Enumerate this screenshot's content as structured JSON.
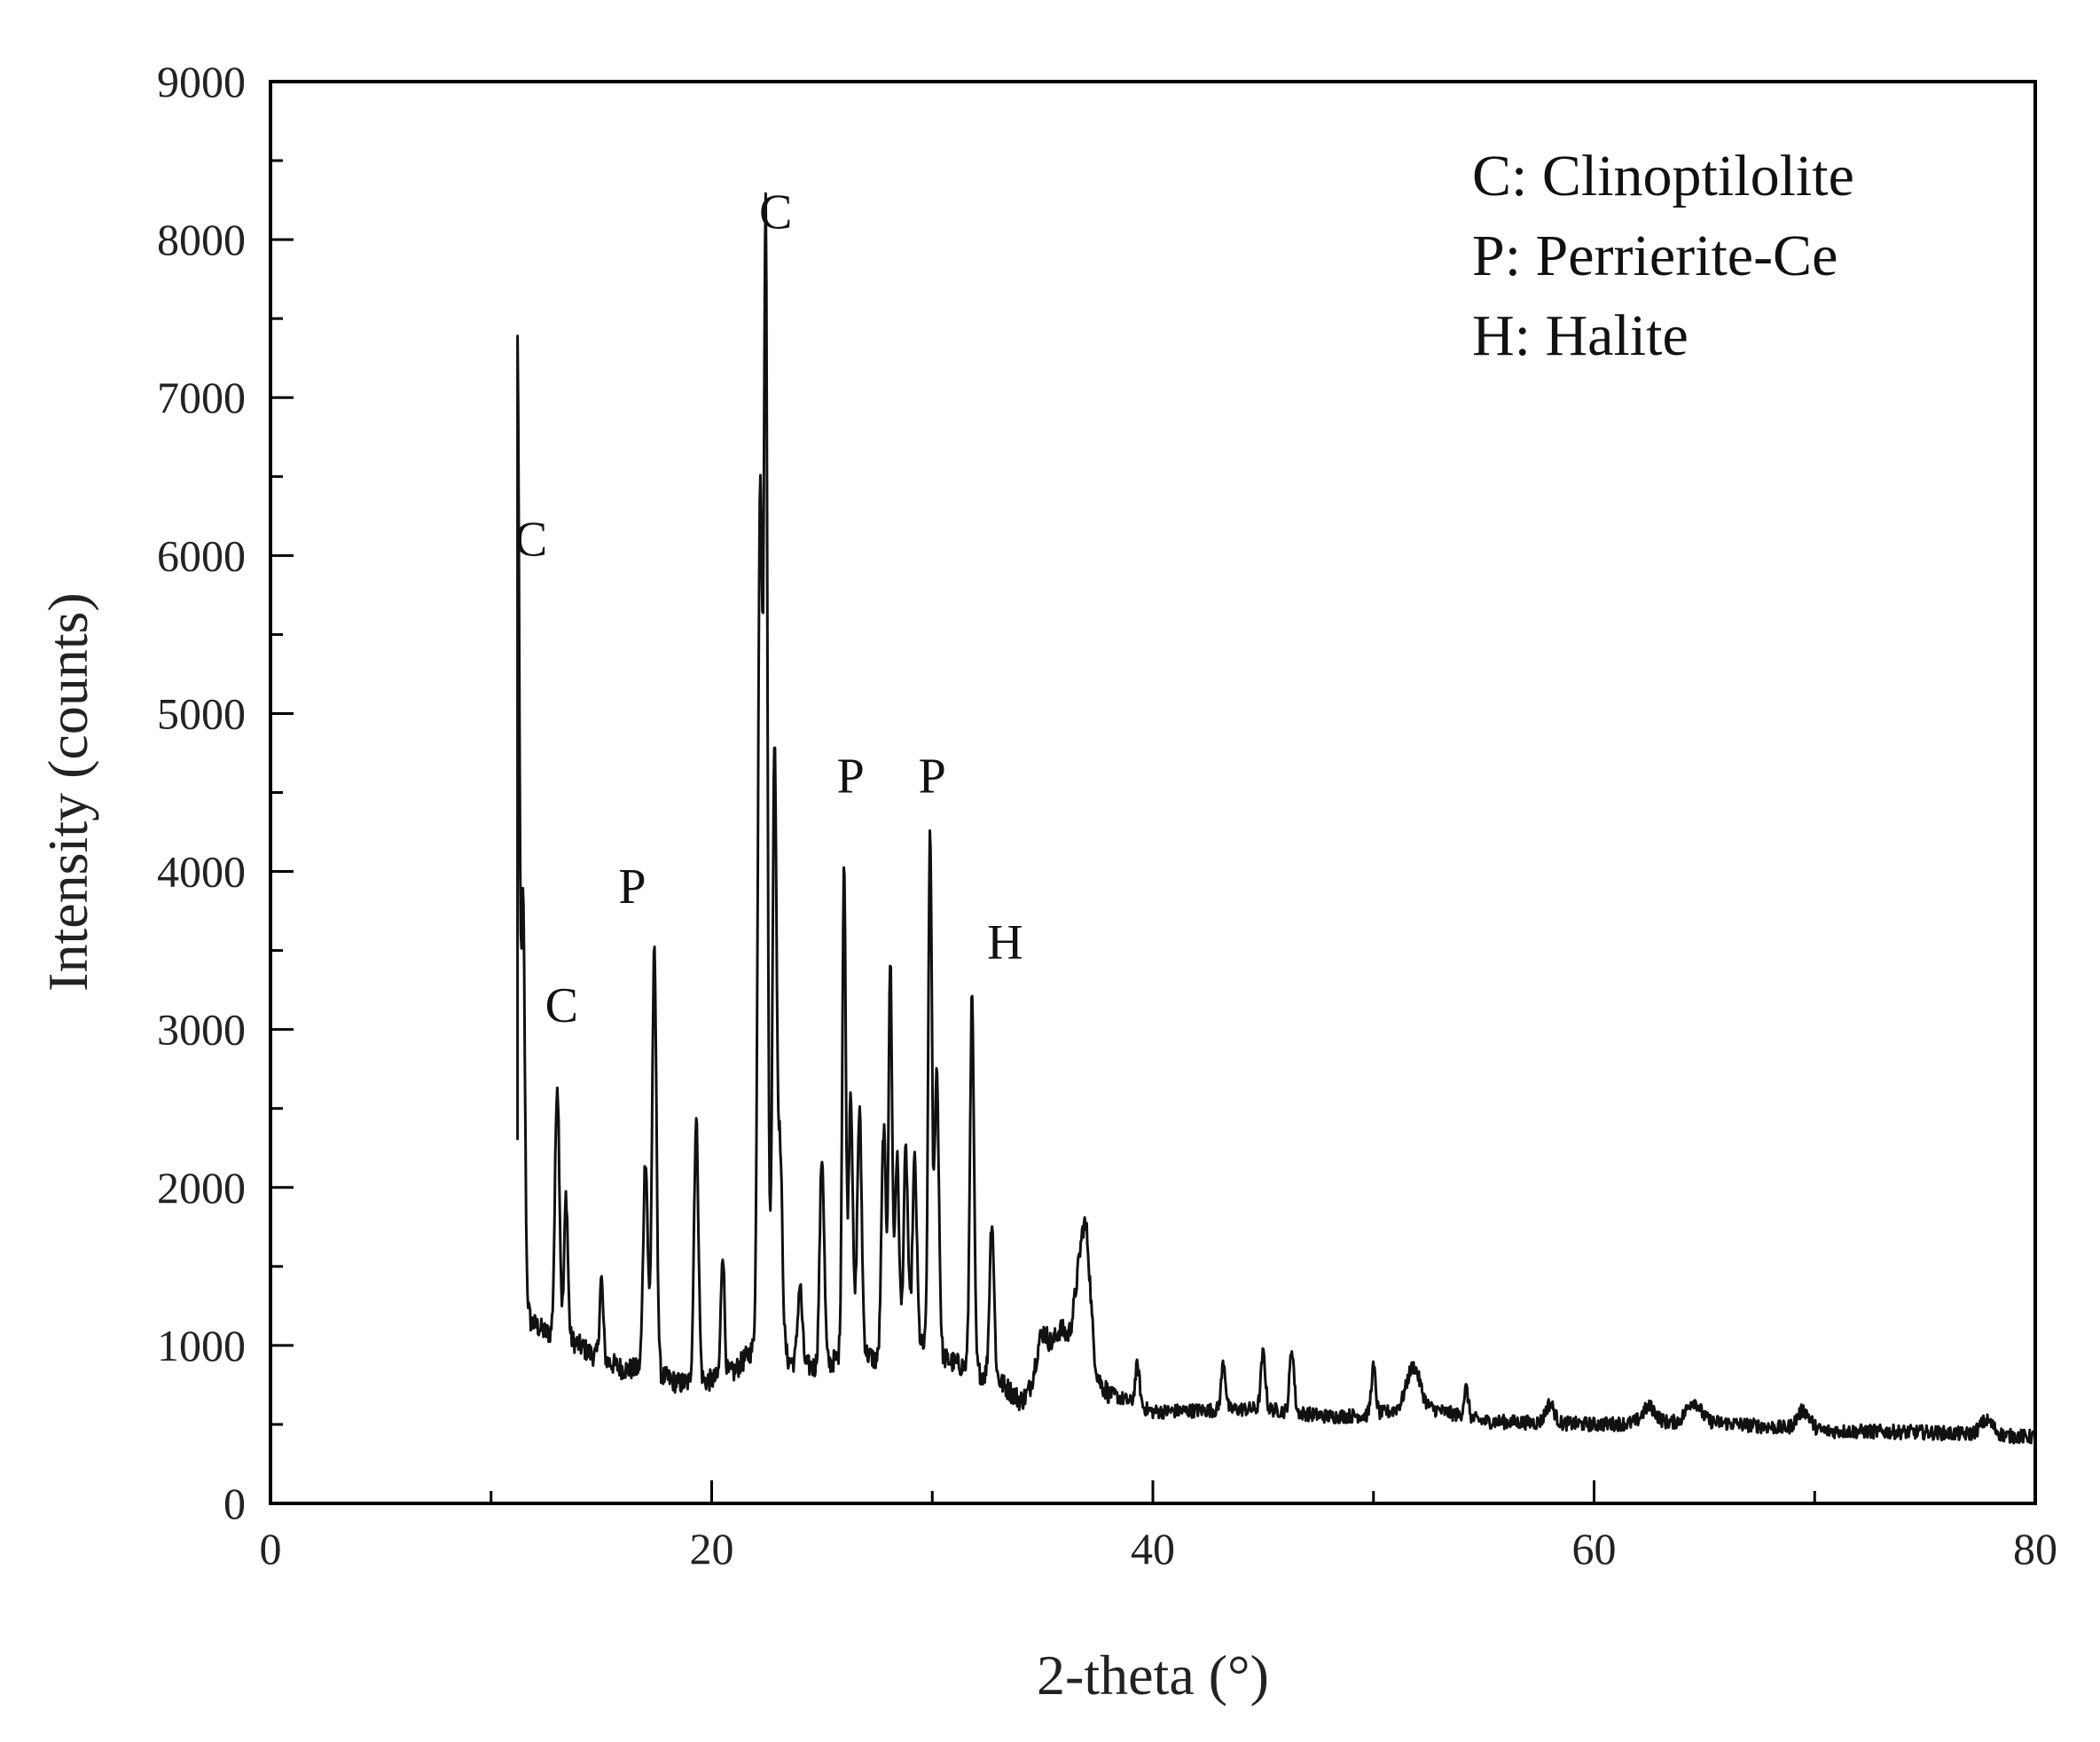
{
  "chart_data": {
    "type": "line",
    "title": "",
    "xlabel": "2-theta (°)",
    "ylabel": "Intensity (counts)",
    "xlim": [
      0,
      80
    ],
    "ylim": [
      0,
      9000
    ],
    "x_ticks": [
      0,
      20,
      40,
      60,
      80
    ],
    "y_ticks": [
      0,
      1000,
      2000,
      3000,
      4000,
      5000,
      6000,
      7000,
      8000,
      9000
    ],
    "grid": false,
    "line_color": "#111111",
    "legend_position": "top-right",
    "legend_entries": [
      "C: Clinoptilolite",
      "P: Perrierite-Ce",
      "H: Halite"
    ],
    "series": [
      {
        "x_start": 11.2,
        "x_end": 80,
        "baseline": [
          [
            11.2,
            1600
          ],
          [
            11.8,
            1150
          ],
          [
            12.5,
            1080
          ],
          [
            13.5,
            1050
          ],
          [
            14.5,
            950
          ],
          [
            16,
            850
          ],
          [
            17,
            850
          ],
          [
            18.5,
            760
          ],
          [
            20,
            780
          ],
          [
            21,
            830
          ],
          [
            22,
            1000
          ],
          [
            22.5,
            1250
          ],
          [
            23.5,
            900
          ],
          [
            25,
            850
          ],
          [
            26.5,
            1000
          ],
          [
            28,
            850
          ],
          [
            29.5,
            1000
          ],
          [
            30.8,
            900
          ],
          [
            33,
            780
          ],
          [
            34,
            650
          ],
          [
            35,
            720
          ],
          [
            36,
            800
          ],
          [
            37,
            850
          ],
          [
            38,
            700
          ],
          [
            40,
            580
          ],
          [
            45,
            600
          ],
          [
            48,
            550
          ],
          [
            50,
            560
          ],
          [
            52,
            620
          ],
          [
            55,
            520
          ],
          [
            60,
            500
          ],
          [
            65,
            520
          ],
          [
            70,
            460
          ],
          [
            75,
            450
          ],
          [
            80,
            420
          ]
        ],
        "peaks": [
          [
            11.2,
            5750,
            0.08
          ],
          [
            11.45,
            2400,
            0.08
          ],
          [
            13.0,
            1600,
            0.1
          ],
          [
            13.4,
            900,
            0.08
          ],
          [
            15.0,
            500,
            0.08
          ],
          [
            17.0,
            1350,
            0.1
          ],
          [
            17.4,
            2650,
            0.1
          ],
          [
            19.3,
            1650,
            0.1
          ],
          [
            20.5,
            800,
            0.08
          ],
          [
            22.2,
            5400,
            0.1
          ],
          [
            22.45,
            6800,
            0.08
          ],
          [
            22.85,
            3700,
            0.09
          ],
          [
            23.1,
            1200,
            0.1
          ],
          [
            24.0,
            500,
            0.1
          ],
          [
            25.0,
            1350,
            0.1
          ],
          [
            26.0,
            3100,
            0.08
          ],
          [
            26.3,
            1650,
            0.09
          ],
          [
            26.7,
            1500,
            0.1
          ],
          [
            27.8,
            1500,
            0.1
          ],
          [
            28.1,
            2550,
            0.08
          ],
          [
            28.4,
            1300,
            0.1
          ],
          [
            28.8,
            1300,
            0.1
          ],
          [
            29.2,
            1200,
            0.1
          ],
          [
            29.9,
            3300,
            0.08
          ],
          [
            30.2,
            1800,
            0.1
          ],
          [
            31.8,
            2350,
            0.09
          ],
          [
            32.7,
            1000,
            0.1
          ],
          [
            35.0,
            350,
            0.3
          ],
          [
            35.8,
            300,
            0.3
          ],
          [
            36.7,
            600,
            0.3
          ],
          [
            37.0,
            500,
            0.2
          ],
          [
            39.3,
            250,
            0.1
          ],
          [
            43.2,
            300,
            0.1
          ],
          [
            45,
            350,
            0.1
          ],
          [
            46.3,
            400,
            0.1
          ],
          [
            50,
            300,
            0.1
          ],
          [
            51.8,
            250,
            0.3
          ],
          [
            54.2,
            180,
            0.1
          ],
          [
            58,
            120,
            0.2
          ],
          [
            62.5,
            100,
            0.3
          ],
          [
            64.5,
            130,
            0.3
          ],
          [
            69.5,
            120,
            0.3
          ],
          [
            77.8,
            90,
            0.3
          ]
        ]
      }
    ],
    "annotations": [
      {
        "label": "C",
        "x": 11.8,
        "y": 6000
      },
      {
        "label": "C",
        "x": 13.2,
        "y": 3050
      },
      {
        "label": "P",
        "x": 16.4,
        "y": 3800
      },
      {
        "label": "C",
        "x": 22.9,
        "y": 8070
      },
      {
        "label": "P",
        "x": 26.3,
        "y": 4500
      },
      {
        "label": "P",
        "x": 30.0,
        "y": 4500
      },
      {
        "label": "H",
        "x": 33.3,
        "y": 3450
      }
    ]
  }
}
